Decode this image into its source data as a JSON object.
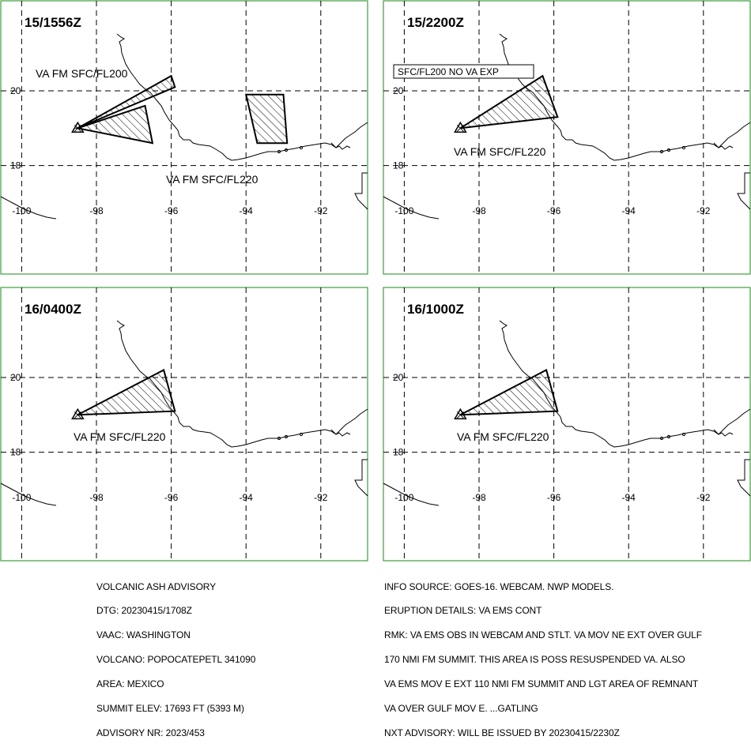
{
  "colors": {
    "panel_border": "#1a8a1a",
    "line": "#000000",
    "background": "#ffffff"
  },
  "panels": [
    {
      "time": "15/1556Z",
      "labels": [
        "VA FM SFC/FL200",
        "VA FM SFC/FL220"
      ],
      "boxed_label": "",
      "polygons": [
        [
          [
            -98.5,
            19.0
          ],
          [
            -96.0,
            20.4
          ],
          [
            -95.9,
            20.1
          ]
        ],
        [
          [
            -98.5,
            19.0
          ],
          [
            -96.7,
            19.6
          ],
          [
            -96.5,
            18.6
          ]
        ],
        [
          [
            -94.0,
            19.9
          ],
          [
            -93.0,
            19.9
          ],
          [
            -92.9,
            18.6
          ],
          [
            -93.7,
            18.6
          ]
        ]
      ]
    },
    {
      "time": "15/2200Z",
      "labels": [
        "VA FM SFC/FL220"
      ],
      "boxed_label": "SFC/FL200 NO VA EXP",
      "polygons": [
        [
          [
            -98.5,
            19.0
          ],
          [
            -96.3,
            20.4
          ],
          [
            -95.9,
            19.3
          ]
        ]
      ]
    },
    {
      "time": "16/0400Z",
      "labels": [
        "VA FM SFC/FL220"
      ],
      "boxed_label": "",
      "polygons": [
        [
          [
            -98.5,
            19.0
          ],
          [
            -96.2,
            20.2
          ],
          [
            -95.9,
            19.1
          ]
        ]
      ]
    },
    {
      "time": "16/1000Z",
      "labels": [
        "VA FM SFC/FL220"
      ],
      "boxed_label": "",
      "polygons": [
        [
          [
            -98.5,
            19.0
          ],
          [
            -96.2,
            20.2
          ],
          [
            -95.9,
            19.1
          ]
        ]
      ]
    }
  ],
  "volcano": {
    "lon": -98.5,
    "lat": 19.0,
    "symbol": "volcano-triangle-icon"
  },
  "lon_ticks": [
    -100,
    -98,
    -96,
    -94,
    -92
  ],
  "lat_ticks": [
    20,
    18
  ],
  "advisory_left": [
    "VOLCANIC ASH ADVISORY",
    "DTG: 20230415/1708Z",
    "VAAC: WASHINGTON",
    "VOLCANO: POPOCATEPETL 341090",
    "AREA: MEXICO",
    "SUMMIT ELEV: 17693 FT (5393 M)",
    "ADVISORY NR: 2023/453"
  ],
  "advisory_right": [
    "INFO SOURCE: GOES-16. WEBCAM. NWP MODELS.",
    "ERUPTION DETAILS: VA EMS CONT",
    "RMK: VA EMS OBS IN WEBCAM AND STLT. VA MOV NE EXT OVER GULF",
    "170 NMI FM SUMMIT. THIS AREA IS POSS RESUSPENDED VA. ALSO",
    "VA EMS MOV E EXT 110 NMI FM SUMMIT AND LGT AREA OF REMNANT",
    "VA OVER GULF MOV E. ...GATLING",
    "NXT ADVISORY: WILL BE ISSUED BY 20230415/2230Z"
  ]
}
